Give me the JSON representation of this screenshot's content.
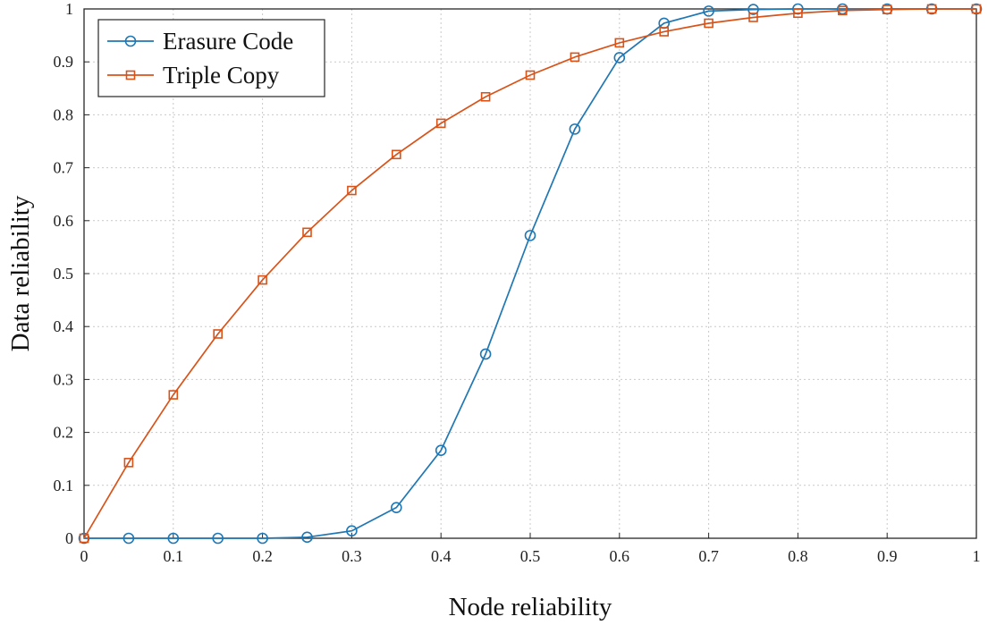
{
  "chart_data": {
    "type": "line",
    "xlabel": "Node reliability",
    "ylabel": "Data reliability",
    "xlim": [
      0,
      1
    ],
    "ylim": [
      0,
      1
    ],
    "grid": true,
    "legend_position": "top-left",
    "x_ticks": [
      "0",
      "0.1",
      "0.2",
      "0.3",
      "0.4",
      "0.5",
      "0.6",
      "0.7",
      "0.8",
      "0.9",
      "1"
    ],
    "y_ticks": [
      "0",
      "0.1",
      "0.2",
      "0.3",
      "0.4",
      "0.5",
      "0.6",
      "0.7",
      "0.8",
      "0.9",
      "1"
    ],
    "x": [
      0,
      0.05,
      0.1,
      0.15,
      0.2,
      0.25,
      0.3,
      0.35,
      0.4,
      0.45,
      0.5,
      0.55,
      0.6,
      0.65,
      0.7,
      0.75,
      0.8,
      0.85,
      0.9,
      0.95,
      1
    ],
    "series": [
      {
        "name": "Erasure Code",
        "color": "#1f77b4",
        "marker": "circle",
        "values": [
          0,
          0,
          0,
          0,
          0,
          0.002,
          0.014,
          0.058,
          0.166,
          0.348,
          0.572,
          0.773,
          0.908,
          0.973,
          0.996,
          0.999,
          1,
          1,
          1,
          1,
          1
        ]
      },
      {
        "name": "Triple Copy",
        "color": "#d95319",
        "marker": "square",
        "values": [
          0,
          0.143,
          0.271,
          0.386,
          0.488,
          0.578,
          0.657,
          0.725,
          0.784,
          0.834,
          0.875,
          0.909,
          0.936,
          0.957,
          0.973,
          0.984,
          0.992,
          0.997,
          0.999,
          1,
          1
        ]
      }
    ]
  }
}
